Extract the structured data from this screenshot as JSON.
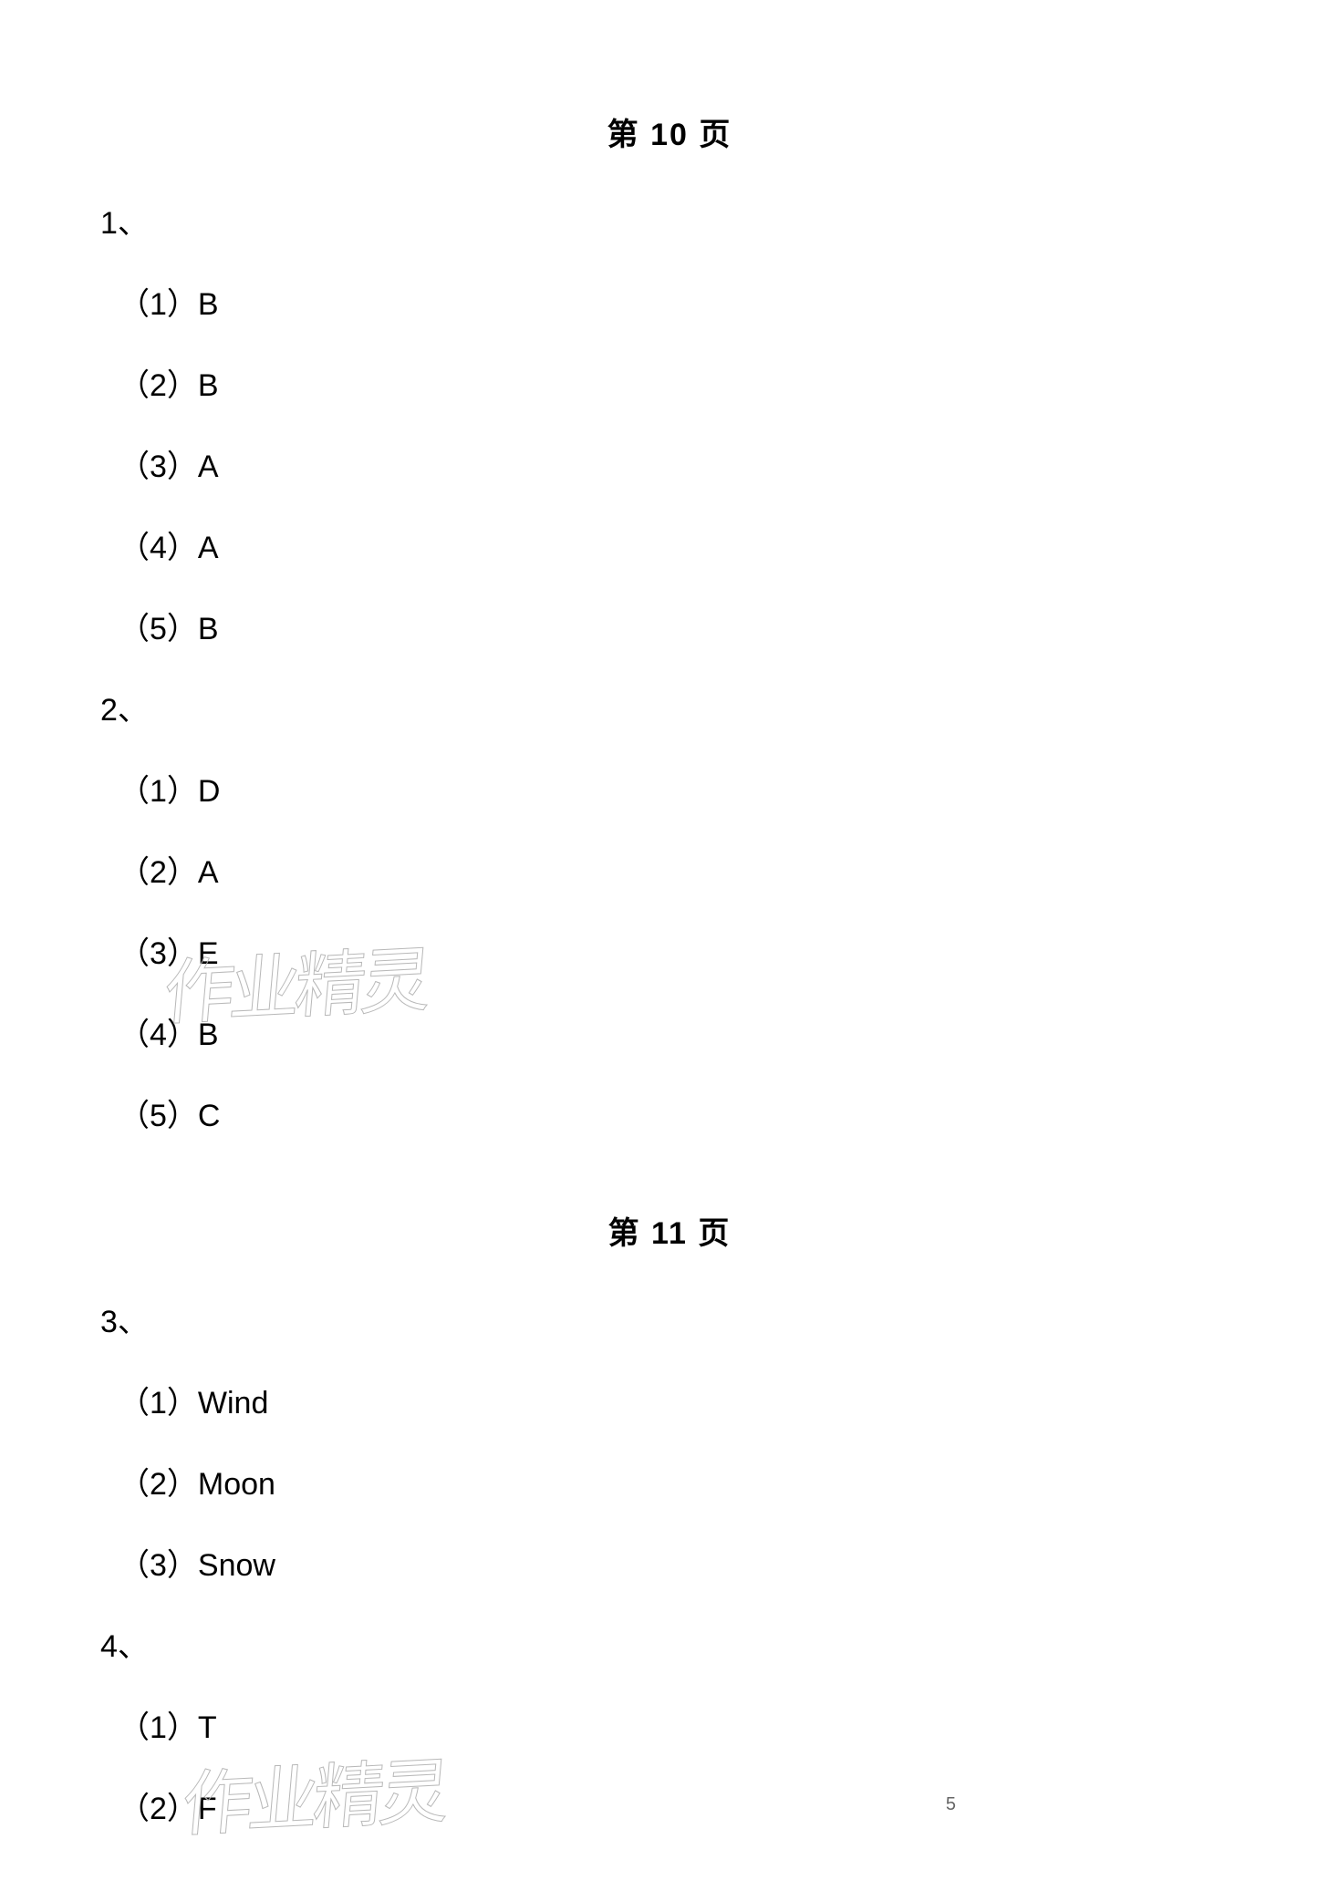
{
  "sections": [
    {
      "heading": "第 10 页",
      "questions": [
        {
          "number": "1、",
          "answers": [
            {
              "label": "（1）B"
            },
            {
              "label": "（2）B"
            },
            {
              "label": "（3）A"
            },
            {
              "label": "（4）A"
            },
            {
              "label": "（5）B"
            }
          ]
        },
        {
          "number": "2、",
          "answers": [
            {
              "label": "（1）D"
            },
            {
              "label": "（2）A"
            },
            {
              "label": "（3）E"
            },
            {
              "label": "（4）B"
            },
            {
              "label": "（5）C"
            }
          ]
        }
      ]
    },
    {
      "heading": "第 11 页",
      "questions": [
        {
          "number": "3、",
          "answers": [
            {
              "label": "（1）Wind"
            },
            {
              "label": "（2）Moon"
            },
            {
              "label": "（3）Snow"
            }
          ]
        },
        {
          "number": "4、",
          "answers": [
            {
              "label": "（1）T"
            },
            {
              "label": "（2）F"
            }
          ]
        }
      ]
    }
  ],
  "watermark_text": "作业精灵",
  "page_number": "5"
}
